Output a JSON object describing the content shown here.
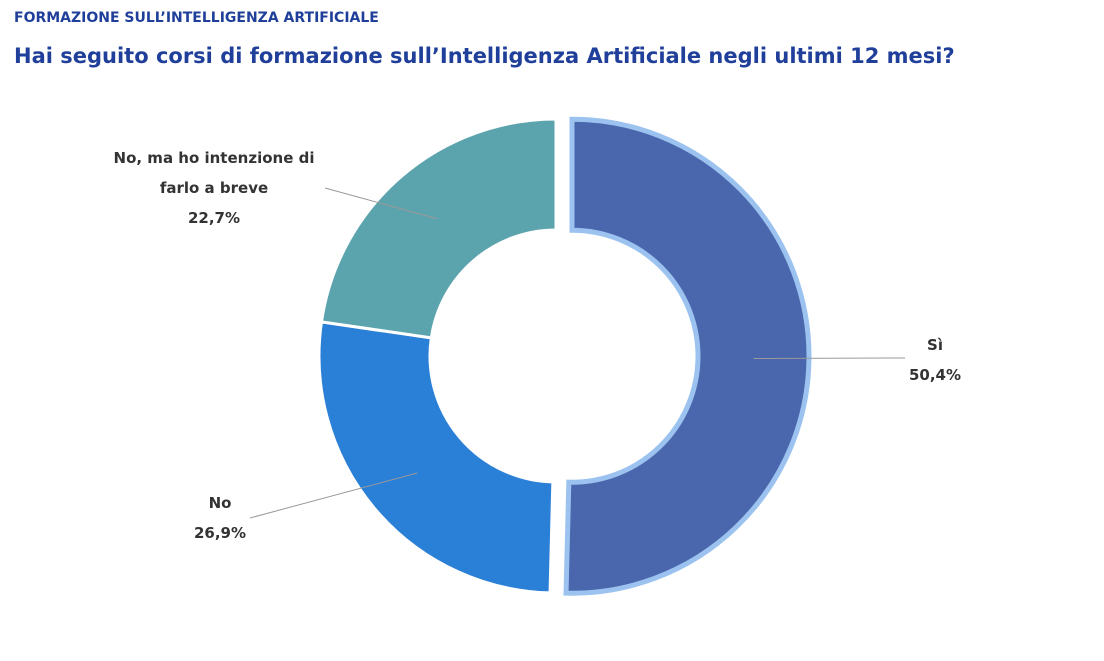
{
  "chart_data": {
    "type": "donut",
    "header": "FORMAZIONE SULL’INTELLIGENZA ARTIFICIALE",
    "title": "Hai seguito corsi di formazione sull’Intelligenza Artificiale negli ultimi 12 mesi?",
    "categories": [
      "Sì",
      "No",
      "No, ma ho intenzione di farlo a breve"
    ],
    "values": [
      50.4,
      26.9,
      22.7
    ],
    "value_labels": [
      "50,4%",
      "26,9%",
      "22,7%"
    ],
    "colors": [
      "#4a66ad",
      "#2a7fd6",
      "#5ba3ad"
    ]
  }
}
